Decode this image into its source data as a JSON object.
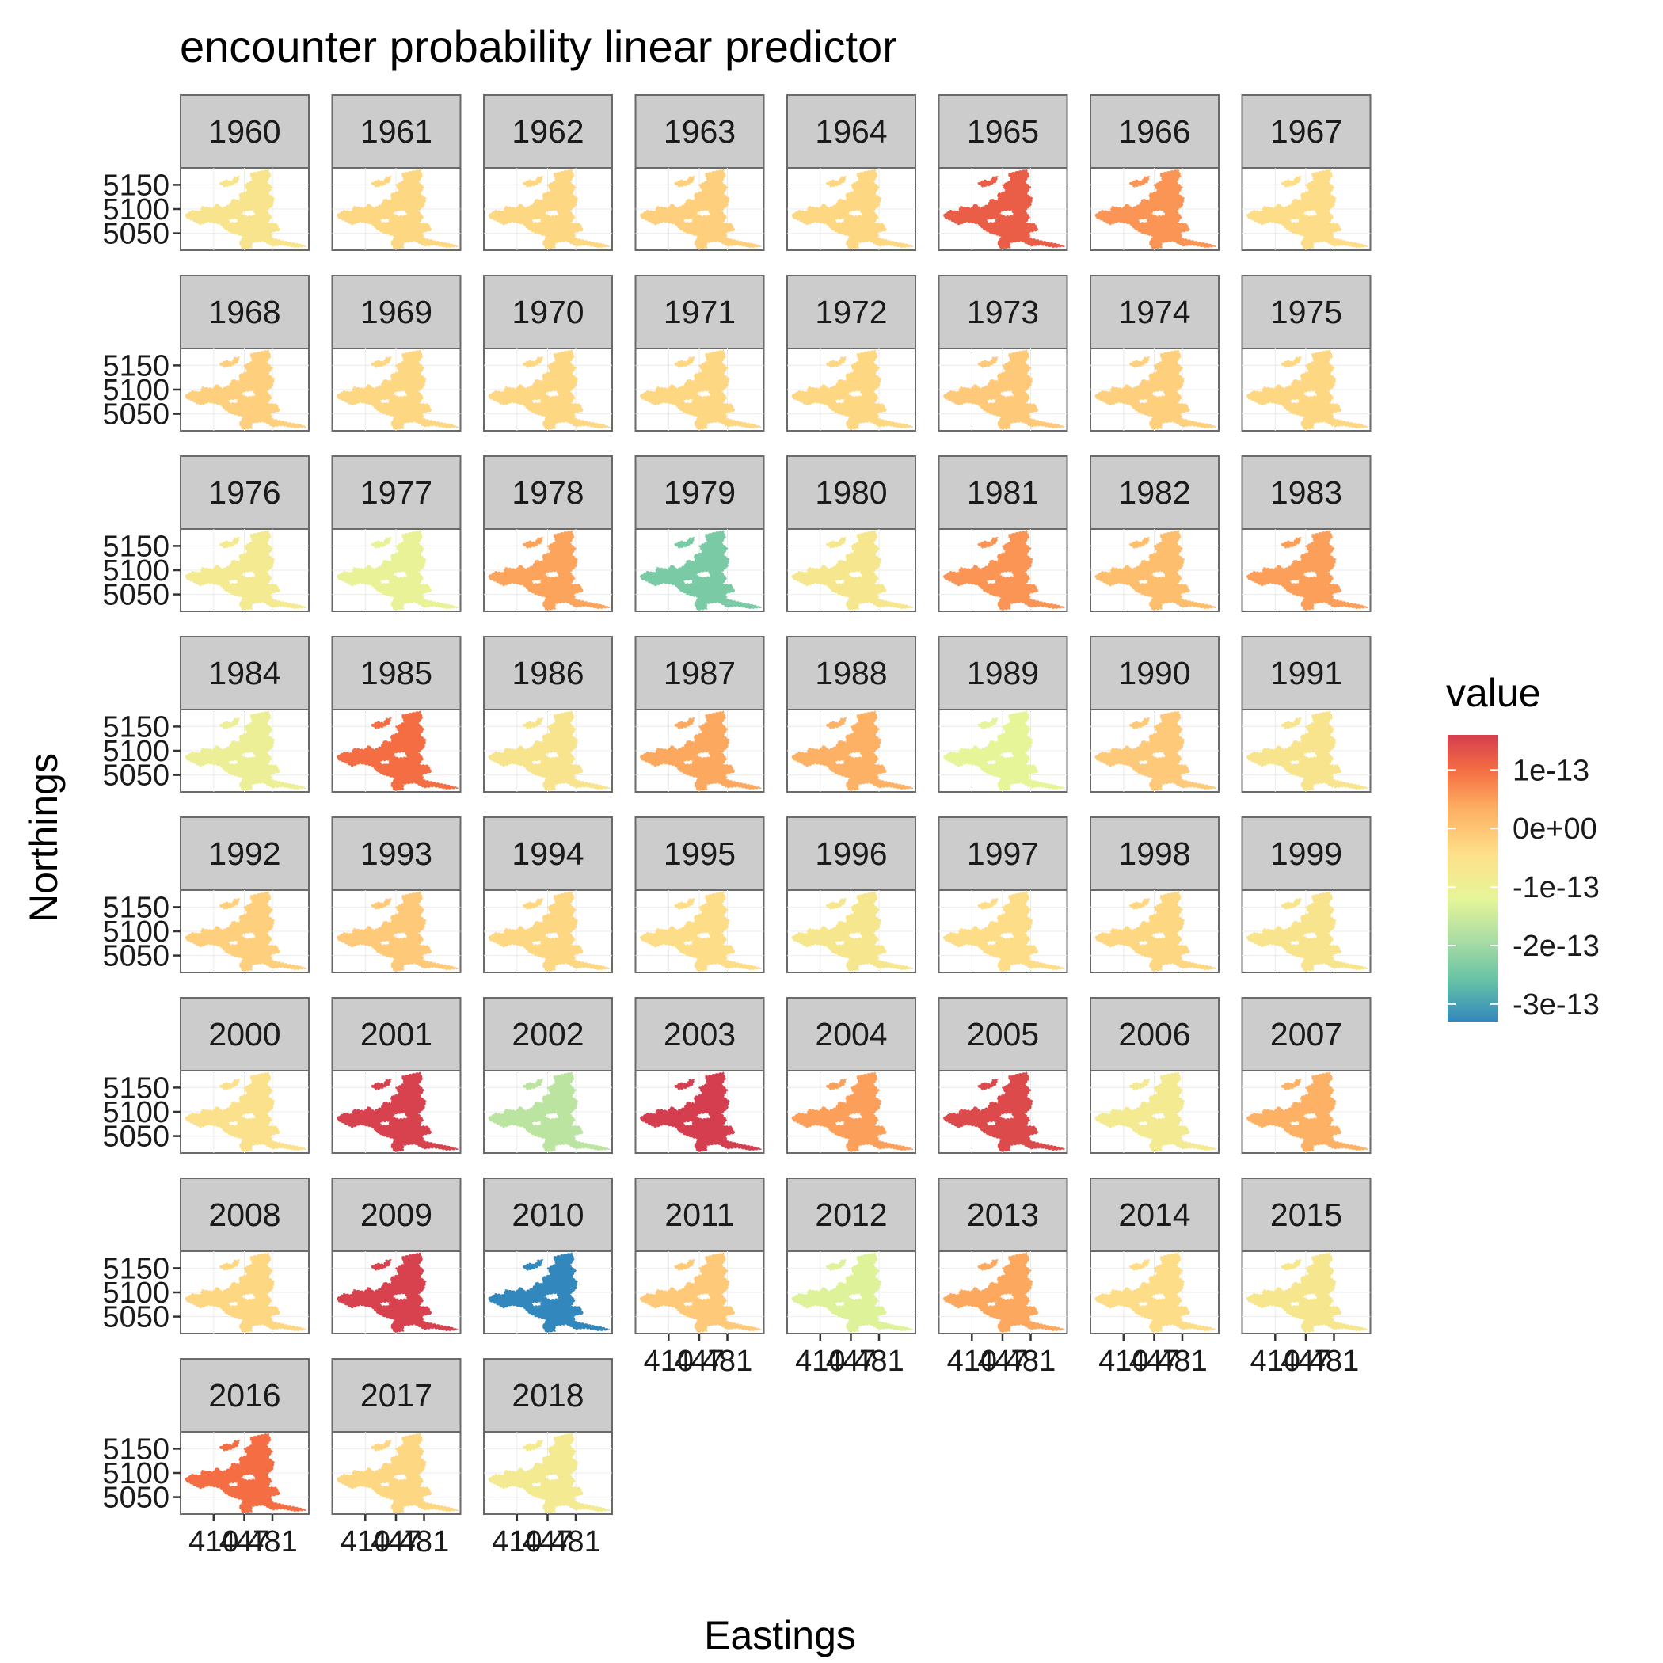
{
  "chart_data": {
    "type": "heatmap",
    "title": "encounter probability linear predictor",
    "xlabel": "Eastings",
    "ylabel": "Northings",
    "facet_by": "year",
    "layout": {
      "ncol": 8,
      "nrow": 8
    },
    "x_ticks": [
      "410",
      "447",
      "481"
    ],
    "x_tick_values": [
      410,
      447,
      481
    ],
    "xlim": [
      370,
      525
    ],
    "y_ticks": [
      "5150",
      "5100",
      "5050"
    ],
    "y_tick_values": [
      5150,
      5100,
      5050
    ],
    "ylim": [
      5015,
      5185
    ],
    "legend": {
      "title": "value",
      "position": "right",
      "labels": [
        "1e-13",
        "0e+00",
        "-1e-13",
        "-2e-13",
        "-3e-13"
      ],
      "label_values": [
        1e-13,
        0,
        -1e-13,
        -2e-13,
        -3e-13
      ],
      "range": [
        -3.3e-13,
        1.6e-13
      ],
      "palette": [
        "#3288bd",
        "#66c2a5",
        "#abdda4",
        "#e6f598",
        "#fee08b",
        "#fdae61",
        "#f46d43",
        "#d53e4f"
      ],
      "palette_values": [
        -3.3e-13,
        -2.6e-13,
        -1.9e-13,
        -1.2e-13,
        -4.5e-14,
        3.5e-14,
        1e-13,
        1.6e-13
      ]
    },
    "panels": [
      {
        "year": "1960",
        "value": -6e-14
      },
      {
        "year": "1961",
        "value": -3e-14
      },
      {
        "year": "1962",
        "value": -3e-14
      },
      {
        "year": "1963",
        "value": -2e-14
      },
      {
        "year": "1964",
        "value": -3e-14
      },
      {
        "year": "1965",
        "value": 1.2e-13
      },
      {
        "year": "1966",
        "value": 6e-14
      },
      {
        "year": "1967",
        "value": -4e-14
      },
      {
        "year": "1968",
        "value": -2e-14
      },
      {
        "year": "1969",
        "value": -3e-14
      },
      {
        "year": "1970",
        "value": -3e-14
      },
      {
        "year": "1971",
        "value": -3e-14
      },
      {
        "year": "1972",
        "value": -3e-14
      },
      {
        "year": "1973",
        "value": -1e-14
      },
      {
        "year": "1974",
        "value": -2e-14
      },
      {
        "year": "1975",
        "value": -3e-14
      },
      {
        "year": "1976",
        "value": -8e-14
      },
      {
        "year": "1977",
        "value": -1.1e-13
      },
      {
        "year": "1978",
        "value": 4.5e-14
      },
      {
        "year": "1979",
        "value": -2.4e-13
      },
      {
        "year": "1980",
        "value": -7e-14
      },
      {
        "year": "1981",
        "value": 6e-14
      },
      {
        "year": "1982",
        "value": 1e-14
      },
      {
        "year": "1983",
        "value": 5e-14
      },
      {
        "year": "1984",
        "value": -1e-13
      },
      {
        "year": "1985",
        "value": 1e-13
      },
      {
        "year": "1986",
        "value": -6e-14
      },
      {
        "year": "1987",
        "value": 4e-14
      },
      {
        "year": "1988",
        "value": 3e-14
      },
      {
        "year": "1989",
        "value": -1.2e-13
      },
      {
        "year": "1990",
        "value": -1e-14
      },
      {
        "year": "1991",
        "value": -6e-14
      },
      {
        "year": "1992",
        "value": -2e-14
      },
      {
        "year": "1993",
        "value": -1e-14
      },
      {
        "year": "1994",
        "value": -3e-14
      },
      {
        "year": "1995",
        "value": -4e-14
      },
      {
        "year": "1996",
        "value": -7e-14
      },
      {
        "year": "1997",
        "value": -4e-14
      },
      {
        "year": "1998",
        "value": -3e-14
      },
      {
        "year": "1999",
        "value": -6e-14
      },
      {
        "year": "2000",
        "value": -5e-14
      },
      {
        "year": "2001",
        "value": 1.55e-13
      },
      {
        "year": "2002",
        "value": -1.7e-13
      },
      {
        "year": "2003",
        "value": 1.6e-13
      },
      {
        "year": "2004",
        "value": 5e-14
      },
      {
        "year": "2005",
        "value": 1.45e-13
      },
      {
        "year": "2006",
        "value": -8e-14
      },
      {
        "year": "2007",
        "value": 3e-14
      },
      {
        "year": "2008",
        "value": -3e-14
      },
      {
        "year": "2009",
        "value": 1.55e-13
      },
      {
        "year": "2010",
        "value": -3.3e-13
      },
      {
        "year": "2011",
        "value": -1e-14
      },
      {
        "year": "2012",
        "value": -1.3e-13
      },
      {
        "year": "2013",
        "value": 4e-14
      },
      {
        "year": "2014",
        "value": -4e-14
      },
      {
        "year": "2015",
        "value": -7e-14
      },
      {
        "year": "2016",
        "value": 1e-13
      },
      {
        "year": "2017",
        "value": -3e-14
      },
      {
        "year": "2018",
        "value": -8e-14
      }
    ]
  }
}
